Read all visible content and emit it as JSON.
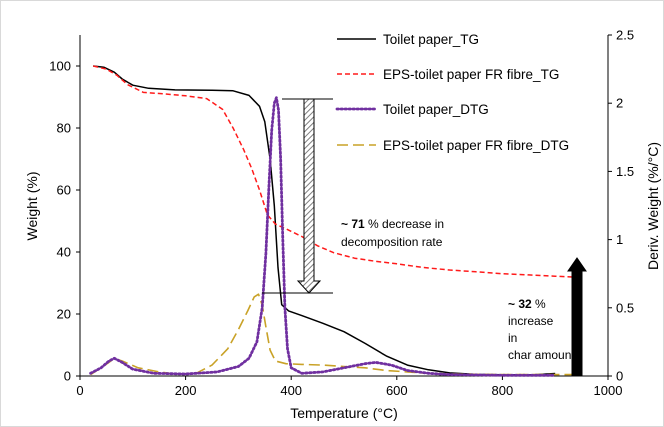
{
  "chart_data": {
    "type": "line",
    "xlabel": "Temperature (°C)",
    "ylabel_left": "Weight (%)",
    "ylabel_right": "Deriv. Weight (%/°C)",
    "xlim": [
      0,
      1000
    ],
    "ylim_left": [
      0,
      110
    ],
    "ylim_right": [
      0,
      2.5
    ],
    "x_ticks": [
      "0",
      "200",
      "400",
      "600",
      "800",
      "1000"
    ],
    "y_left_ticks": [
      "0",
      "20",
      "40",
      "60",
      "80",
      "100"
    ],
    "y_right_ticks": [
      "0",
      "0.5",
      "1",
      "1.5",
      "2",
      "2.5"
    ],
    "grid": false,
    "legend_position": "top-right",
    "series": [
      {
        "name": "Toilet paper_TG",
        "axis": "left",
        "color": "#000000",
        "style": "solid",
        "points": [
          [
            25,
            100
          ],
          [
            45,
            99.6
          ],
          [
            65,
            98
          ],
          [
            80,
            95.8
          ],
          [
            100,
            93.8
          ],
          [
            130,
            92.8
          ],
          [
            180,
            92.3
          ],
          [
            250,
            92.2
          ],
          [
            290,
            92
          ],
          [
            320,
            90.5
          ],
          [
            340,
            87
          ],
          [
            350,
            82
          ],
          [
            360,
            70
          ],
          [
            368,
            55
          ],
          [
            375,
            35
          ],
          [
            382,
            23
          ],
          [
            395,
            21
          ],
          [
            420,
            19.5
          ],
          [
            460,
            17
          ],
          [
            500,
            14.3
          ],
          [
            540,
            10.5
          ],
          [
            580,
            6.5
          ],
          [
            620,
            3.5
          ],
          [
            660,
            2
          ],
          [
            700,
            1
          ],
          [
            750,
            0.5
          ],
          [
            800,
            0.4
          ],
          [
            860,
            0.4
          ],
          [
            900,
            0.8
          ]
        ]
      },
      {
        "name": "EPS-toilet paper FR fibre_TG",
        "axis": "left",
        "color": "#ff1a1a",
        "style": "dashed",
        "points": [
          [
            25,
            100
          ],
          [
            50,
            99
          ],
          [
            70,
            97
          ],
          [
            90,
            94
          ],
          [
            120,
            91.5
          ],
          [
            160,
            91
          ],
          [
            200,
            90.4
          ],
          [
            240,
            89.5
          ],
          [
            270,
            86
          ],
          [
            290,
            80
          ],
          [
            310,
            73
          ],
          [
            325,
            67
          ],
          [
            340,
            60
          ],
          [
            355,
            52
          ],
          [
            370,
            49
          ],
          [
            390,
            47.5
          ],
          [
            420,
            45
          ],
          [
            450,
            42
          ],
          [
            480,
            39.8
          ],
          [
            520,
            38
          ],
          [
            560,
            37
          ],
          [
            600,
            36.2
          ],
          [
            650,
            35
          ],
          [
            700,
            34.2
          ],
          [
            750,
            33.6
          ],
          [
            800,
            33
          ],
          [
            850,
            32.6
          ],
          [
            900,
            32.2
          ],
          [
            950,
            31.8
          ]
        ]
      },
      {
        "name": "Toilet paper_DTG",
        "axis": "right",
        "color": "#7030a0",
        "style": "dotted",
        "points": [
          [
            20,
            0.02
          ],
          [
            40,
            0.06
          ],
          [
            55,
            0.11
          ],
          [
            65,
            0.13
          ],
          [
            80,
            0.1
          ],
          [
            100,
            0.05
          ],
          [
            140,
            0.02
          ],
          [
            200,
            0.015
          ],
          [
            260,
            0.03
          ],
          [
            300,
            0.07
          ],
          [
            320,
            0.13
          ],
          [
            335,
            0.25
          ],
          [
            345,
            0.5
          ],
          [
            352,
            0.9
          ],
          [
            358,
            1.4
          ],
          [
            363,
            1.8
          ],
          [
            368,
            2.0
          ],
          [
            372,
            2.04
          ],
          [
            376,
            1.95
          ],
          [
            380,
            1.6
          ],
          [
            384,
            1.0
          ],
          [
            388,
            0.5
          ],
          [
            393,
            0.2
          ],
          [
            400,
            0.06
          ],
          [
            420,
            0.02
          ],
          [
            460,
            0.03
          ],
          [
            500,
            0.06
          ],
          [
            540,
            0.09
          ],
          [
            560,
            0.1
          ],
          [
            590,
            0.08
          ],
          [
            620,
            0.04
          ],
          [
            660,
            0.02
          ],
          [
            700,
            0.01
          ],
          [
            800,
            0.005
          ],
          [
            900,
            0.005
          ]
        ]
      },
      {
        "name": "EPS-toilet paper FR fibre_DTG",
        "axis": "right",
        "color": "#c9a227",
        "style": "longdash",
        "points": [
          [
            20,
            0.01
          ],
          [
            40,
            0.06
          ],
          [
            55,
            0.1
          ],
          [
            65,
            0.13
          ],
          [
            80,
            0.11
          ],
          [
            110,
            0.06
          ],
          [
            150,
            0.03
          ],
          [
            180,
            0.015
          ],
          [
            220,
            0.02
          ],
          [
            250,
            0.08
          ],
          [
            280,
            0.2
          ],
          [
            300,
            0.34
          ],
          [
            318,
            0.48
          ],
          [
            330,
            0.58
          ],
          [
            338,
            0.6
          ],
          [
            345,
            0.52
          ],
          [
            352,
            0.36
          ],
          [
            360,
            0.19
          ],
          [
            370,
            0.11
          ],
          [
            390,
            0.09
          ],
          [
            420,
            0.085
          ],
          [
            460,
            0.08
          ],
          [
            500,
            0.07
          ],
          [
            540,
            0.06
          ],
          [
            580,
            0.04
          ],
          [
            620,
            0.03
          ],
          [
            660,
            0.02
          ],
          [
            700,
            0.015
          ],
          [
            800,
            0.01
          ],
          [
            900,
            0.01
          ],
          [
            950,
            0.01
          ]
        ]
      }
    ],
    "annotations": {
      "decomposition": {
        "bold": "~ 71",
        "rest": " % decrease in",
        "line2": "decomposition rate"
      },
      "char": {
        "bold": "~ 32",
        "rest": " %",
        "line2": "increase",
        "line3": "in",
        "line4": "char amount"
      }
    }
  }
}
